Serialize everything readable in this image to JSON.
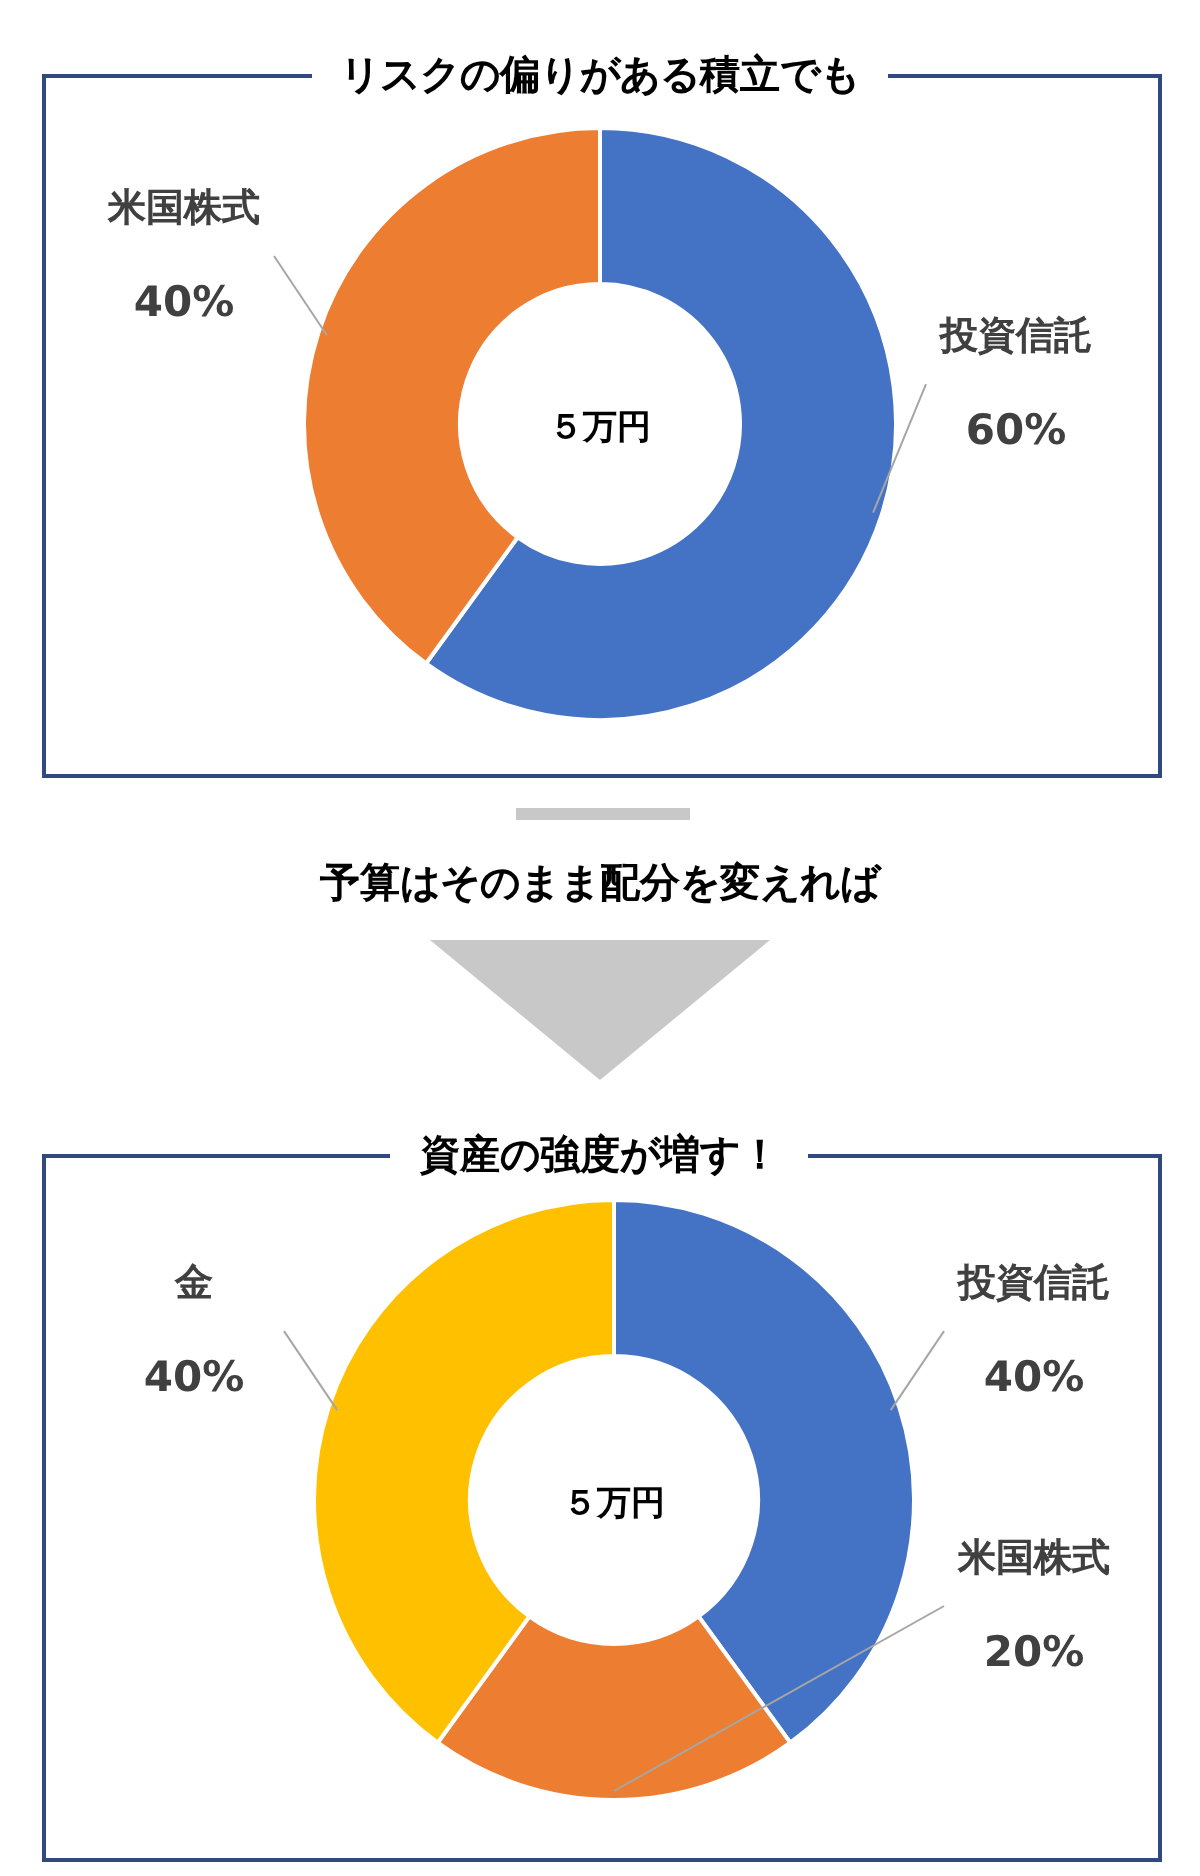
{
  "chart_data": [
    {
      "type": "donut",
      "title": "リスクの偏りがある積立でも",
      "categories": [
        "投資信託",
        "米国株式"
      ],
      "values": [
        60,
        40
      ],
      "value_labels": [
        "60%",
        "40%"
      ],
      "colors": [
        "#4472c4",
        "#ed7d31"
      ],
      "annotations": [
        "５万円",
        "予算はそのまま配分を変えれば"
      ]
    },
    {
      "type": "donut",
      "title": "資産の強度が増す！",
      "categories": [
        "投資信託",
        "米国株式",
        "金"
      ],
      "values": [
        40,
        20,
        40
      ],
      "value_labels": [
        "40%",
        "20%",
        "40%"
      ],
      "colors": [
        "#4472c4",
        "#ed7d31",
        "#ffc000"
      ],
      "annotations": [
        "５万円"
      ]
    }
  ]
}
